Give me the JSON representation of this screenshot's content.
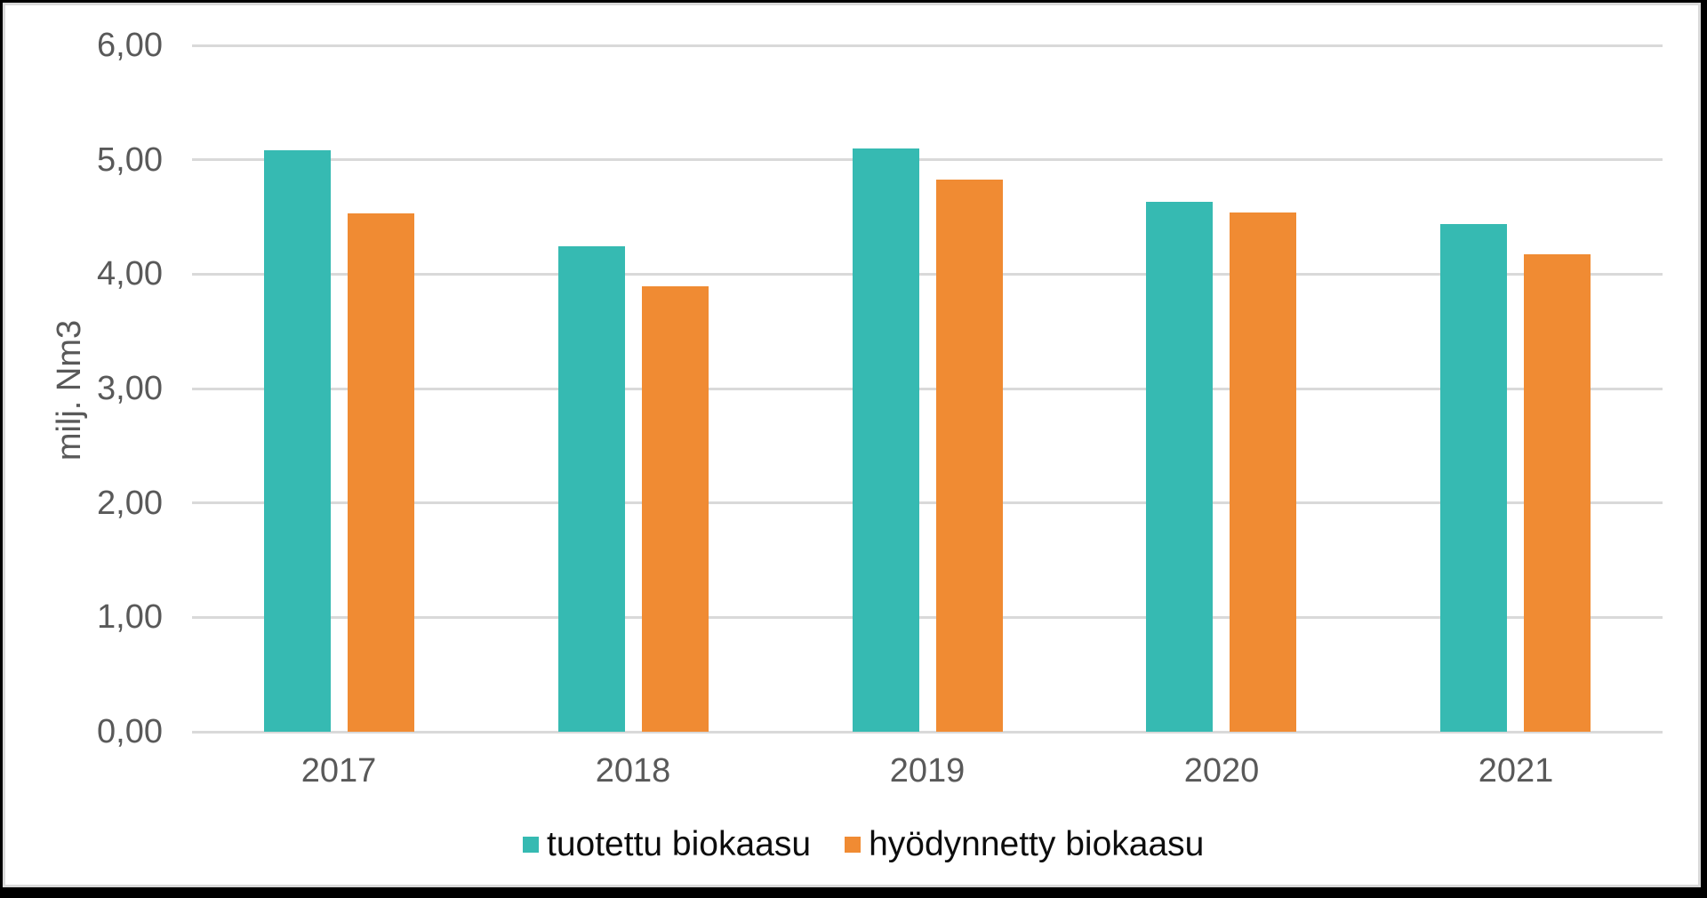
{
  "chart_data": {
    "type": "bar",
    "title": "",
    "xlabel": "",
    "ylabel": "milj. Nm3",
    "categories": [
      "2017",
      "2018",
      "2019",
      "2020",
      "2021"
    ],
    "series": [
      {
        "name": "tuotettu biokaasu",
        "slug": "tuotettu-biokaasu",
        "color": "#36bab2",
        "values": [
          5.08,
          4.24,
          5.1,
          4.63,
          4.44
        ]
      },
      {
        "name": "hyödynnetty biokaasu",
        "slug": "hyodynnetty-biokaasu",
        "color": "#f08b33",
        "values": [
          4.53,
          3.89,
          4.83,
          4.54,
          4.17
        ]
      }
    ],
    "y_axis": {
      "min": 0,
      "max": 6,
      "step": 1,
      "tick_labels": [
        "0,00",
        "1,00",
        "2,00",
        "3,00",
        "4,00",
        "5,00",
        "6,00"
      ]
    },
    "grid": "horizontal",
    "legend_position": "bottom",
    "colors": {
      "gridline": "#d9d9d9",
      "axis_text": "#595959",
      "legend_text": "#0d0d0d",
      "background": "#ffffff"
    }
  }
}
